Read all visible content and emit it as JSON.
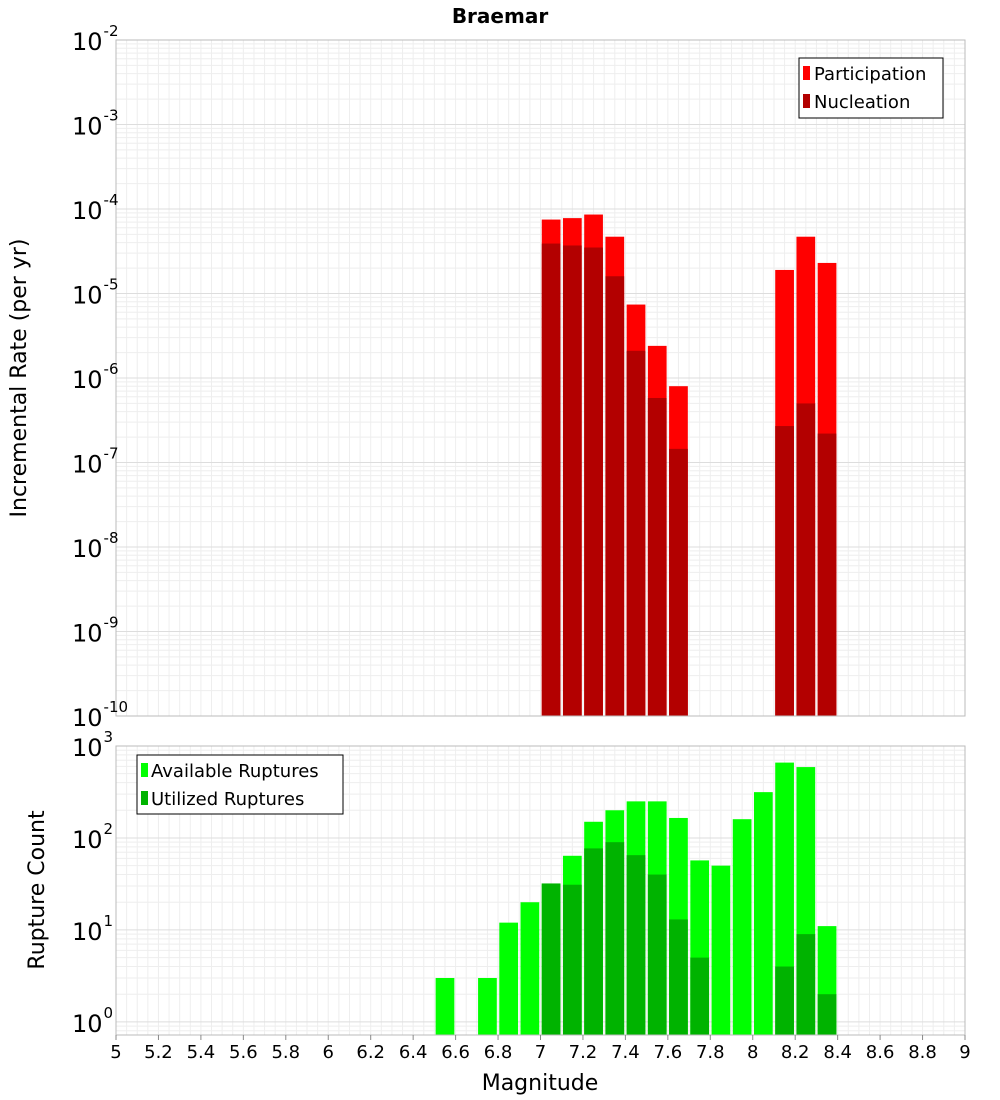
{
  "chart_data": [
    {
      "type": "bar",
      "title": "Braemar",
      "xlabel": "",
      "ylabel": "Incremental Rate (per yr)",
      "y_scale": "log",
      "xlim": [
        5,
        9
      ],
      "ylim_exponents": [
        -10,
        -2
      ],
      "ytick_base": "10",
      "ytick_exponents": [
        "-10",
        "-9",
        "-8",
        "-7",
        "-6",
        "-5",
        "-4",
        "-3",
        "-2"
      ],
      "grid": true,
      "legend_position": "top-right",
      "series": [
        {
          "name": "Participation",
          "color": "#ff0000",
          "x": [
            7.05,
            7.15,
            7.25,
            7.35,
            7.45,
            7.55,
            7.65,
            8.15,
            8.25,
            8.35
          ],
          "values": [
            7.5e-05,
            7.8e-05,
            8.6e-05,
            4.7e-05,
            7.4e-06,
            2.4e-06,
            8e-07,
            1.9e-05,
            4.7e-05,
            2.3e-05
          ]
        },
        {
          "name": "Nucleation",
          "color": "#b30000",
          "x": [
            7.05,
            7.15,
            7.25,
            7.35,
            7.45,
            7.55,
            7.65,
            8.15,
            8.25,
            8.35
          ],
          "values": [
            3.9e-05,
            3.7e-05,
            3.5e-05,
            1.6e-05,
            2.1e-06,
            5.8e-07,
            1.45e-07,
            2.7e-07,
            5e-07,
            2.2e-07
          ]
        }
      ]
    },
    {
      "type": "bar",
      "title": "",
      "xlabel": "Magnitude",
      "ylabel": "Rupture Count",
      "y_scale": "log",
      "xlim": [
        5,
        9
      ],
      "ylim": [
        0.72,
        1000
      ],
      "ytick_base": "10",
      "ytick_exponents": [
        "0",
        "1",
        "2",
        "3"
      ],
      "xtick_labels": [
        "5",
        "5.2",
        "5.4",
        "5.6",
        "5.8",
        "6",
        "6.2",
        "6.4",
        "6.6",
        "6.8",
        "7",
        "7.2",
        "7.4",
        "7.6",
        "7.8",
        "8",
        "8.2",
        "8.4",
        "8.6",
        "8.8",
        "9"
      ],
      "grid": true,
      "legend_position": "top-left",
      "series": [
        {
          "name": "Available Ruptures",
          "color": "#00ff00",
          "x": [
            6.55,
            6.75,
            6.85,
            6.95,
            7.05,
            7.15,
            7.25,
            7.35,
            7.45,
            7.55,
            7.65,
            7.75,
            7.85,
            7.95,
            8.05,
            8.15,
            8.25,
            8.35
          ],
          "values": [
            3,
            3,
            12,
            20,
            32,
            64,
            150,
            200,
            250,
            250,
            165,
            57,
            50,
            160,
            315,
            660,
            590,
            11
          ]
        },
        {
          "name": "Utilized Ruptures",
          "color": "#00b300",
          "x": [
            7.05,
            7.15,
            7.25,
            7.35,
            7.45,
            7.55,
            7.65,
            7.75,
            8.15,
            8.25,
            8.35
          ],
          "values": [
            32,
            31,
            77,
            90,
            65,
            40,
            13,
            5,
            4,
            9,
            2
          ]
        }
      ]
    }
  ]
}
